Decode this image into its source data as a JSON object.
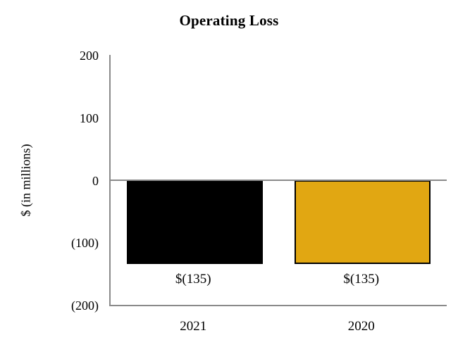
{
  "chart_data": {
    "type": "bar",
    "title": "Operating Loss",
    "categories": [
      "2021",
      "2020"
    ],
    "values": [
      -135,
      -135
    ],
    "bar_labels": [
      "$(135)",
      "$(135)"
    ],
    "bar_colors": [
      "#000000",
      "#E1A712"
    ],
    "ylabel": "$ (in millions)",
    "xlabel": "",
    "ylim": [
      -200,
      200
    ],
    "yticks": [
      {
        "value": 200,
        "label": "200"
      },
      {
        "value": 100,
        "label": "100"
      },
      {
        "value": 0,
        "label": "0"
      },
      {
        "value": -100,
        "label": "(100)"
      },
      {
        "value": -200,
        "label": "(200)"
      }
    ],
    "grid": false,
    "legend_position": "none",
    "axis_color": "#8a8a8a",
    "zero_line": true
  }
}
